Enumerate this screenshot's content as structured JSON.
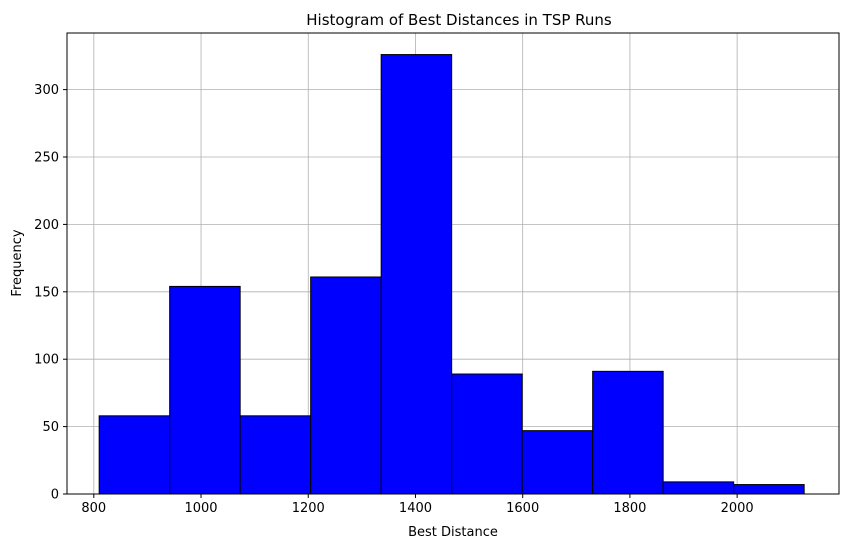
{
  "chart_data": {
    "type": "bar",
    "title": "Histogram of Best Distances in TSP Runs",
    "xlabel": "Best Distance",
    "ylabel": "Frequency",
    "bins": [
      {
        "start": 810,
        "end": 941.5,
        "count": 58
      },
      {
        "start": 941.5,
        "end": 1073,
        "count": 154
      },
      {
        "start": 1073,
        "end": 1204.5,
        "count": 58
      },
      {
        "start": 1204.5,
        "end": 1336,
        "count": 161
      },
      {
        "start": 1336,
        "end": 1467.5,
        "count": 326
      },
      {
        "start": 1467.5,
        "end": 1599,
        "count": 89
      },
      {
        "start": 1599,
        "end": 1730.5,
        "count": 47
      },
      {
        "start": 1730.5,
        "end": 1862,
        "count": 91
      },
      {
        "start": 1862,
        "end": 1993.5,
        "count": 9
      },
      {
        "start": 1993.5,
        "end": 2125,
        "count": 7
      }
    ],
    "xlim": [
      750,
      2190
    ],
    "ylim": [
      0,
      342
    ],
    "xticks": [
      800,
      1000,
      1200,
      1400,
      1600,
      1800,
      2000
    ],
    "yticks": [
      0,
      50,
      100,
      150,
      200,
      250,
      300
    ],
    "bar_color": "#0000ff",
    "edge_color": "#000000",
    "grid": true
  }
}
